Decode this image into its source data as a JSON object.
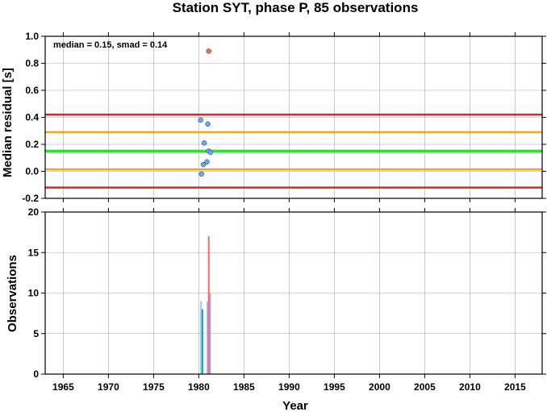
{
  "chart_data": [
    {
      "type": "scatter",
      "title": "Station SYT, phase P, 85 observations",
      "xlabel": "",
      "ylabel": "Median residual [s]",
      "annotation": "median = 0.15, smad = 0.14",
      "xlim": [
        1963,
        2018
      ],
      "ylim": [
        -0.2,
        1.0
      ],
      "yticks": [
        "1.0",
        "0.8",
        "0.6",
        "0.4",
        "0.2",
        "0.0",
        "-0.2"
      ],
      "ytick_values": [
        1.0,
        0.8,
        0.6,
        0.4,
        0.2,
        0.0,
        -0.2
      ],
      "grid": true,
      "reference_lines": [
        {
          "value": 0.42,
          "color": "#e8221f"
        },
        {
          "value": 0.29,
          "color": "#f5a623"
        },
        {
          "value": 0.15,
          "color": "#2fe22f"
        },
        {
          "value": 0.015,
          "color": "#f5a623"
        },
        {
          "value": -0.12,
          "color": "#e8221f"
        }
      ],
      "series": [
        {
          "color": "#6aa6f2",
          "x": [
            1980.2,
            1980.3,
            1980.5,
            1980.6,
            1980.9,
            1981.0,
            1981.1,
            1981.3
          ],
          "y": [
            0.38,
            -0.02,
            0.05,
            0.21,
            0.07,
            0.35,
            0.15,
            0.14
          ]
        },
        {
          "color": "#f26b5b",
          "x": [
            1981.1
          ],
          "y": [
            0.89
          ]
        }
      ]
    },
    {
      "type": "bar",
      "title": "",
      "xlabel": "Year",
      "ylabel": "Observations",
      "xlim": [
        1963,
        2018
      ],
      "ylim": [
        0,
        20
      ],
      "xticks": [
        "1965",
        "1970",
        "1975",
        "1980",
        "1985",
        "1990",
        "1995",
        "2000",
        "2005",
        "2010",
        "2015"
      ],
      "xtick_values": [
        1965,
        1970,
        1975,
        1980,
        1985,
        1990,
        1995,
        2000,
        2005,
        2010,
        2015
      ],
      "yticks": [
        "20",
        "15",
        "10",
        "5",
        "0"
      ],
      "ytick_values": [
        20,
        15,
        10,
        5,
        0
      ],
      "grid": true,
      "bars": [
        {
          "x": 1980.25,
          "value": 9,
          "color": "#9ec2f0"
        },
        {
          "x": 1980.4,
          "value": 8,
          "color": "#1aa3b5"
        },
        {
          "x": 1980.95,
          "value": 9,
          "color": "#9ec2f0"
        },
        {
          "x": 1981.1,
          "value": 17,
          "color": "#f26b5b"
        },
        {
          "x": 1981.25,
          "value": 10,
          "color": "#9ea8f0"
        }
      ]
    }
  ],
  "colors": {
    "axis": "#000000",
    "grid": "#a8a8a8"
  }
}
